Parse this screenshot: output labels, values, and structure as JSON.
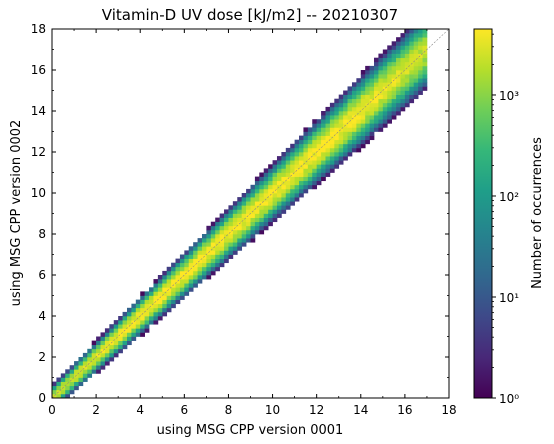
{
  "chart_data": {
    "type": "heatmap",
    "title": "Vitamin-D UV dose [kJ/m2] -- 20210307",
    "xlabel": "using MSG CPP version 0001",
    "ylabel": "using MSG CPP version 0002",
    "xlim": [
      0,
      18
    ],
    "ylim": [
      0,
      18
    ],
    "xticks": [
      0,
      2,
      4,
      6,
      8,
      10,
      12,
      14,
      16,
      18
    ],
    "yticks": [
      0,
      2,
      4,
      6,
      8,
      10,
      12,
      14,
      16,
      18
    ],
    "xtick_labels": [
      "0",
      "2",
      "4",
      "6",
      "8",
      "10",
      "12",
      "14",
      "16",
      "18"
    ],
    "ytick_labels": [
      "0",
      "2",
      "4",
      "6",
      "8",
      "10",
      "12",
      "14",
      "16",
      "18"
    ],
    "bin_size": 0.2,
    "diagonal_line": "y = x",
    "data_range_x": [
      0,
      17
    ],
    "peak_count_approx": 4500,
    "colorbar": {
      "label": "Number of occurrences",
      "scale": "log",
      "range": [
        1,
        4500
      ],
      "colormap": "viridis",
      "ticks": [
        1,
        10,
        100,
        1000
      ],
      "tick_labels": [
        "10⁰",
        "10¹",
        "10²",
        "10³"
      ]
    },
    "colors": {
      "viridis": [
        "#440154",
        "#482878",
        "#3e4989",
        "#31688e",
        "#26828e",
        "#1f9e89",
        "#35b779",
        "#6ece58",
        "#b5de2b",
        "#fde725"
      ],
      "diagonal": "#888888"
    }
  }
}
